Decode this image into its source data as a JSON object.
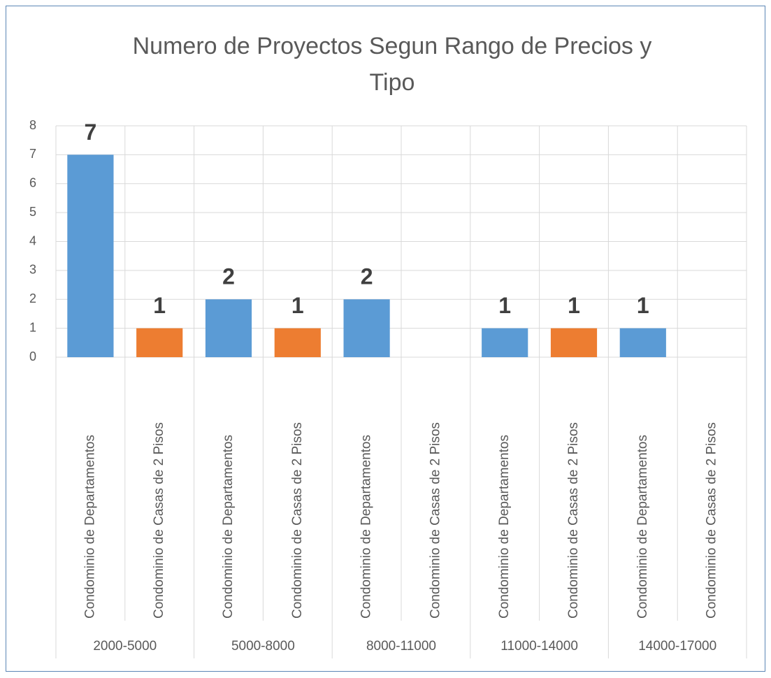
{
  "chart_data": {
    "type": "bar",
    "title": "Numero de Proyectos Segun Rango de Precios y Tipo",
    "groups": [
      "2000-5000",
      "5000-8000",
      "8000-11000",
      "11000-14000",
      "14000-17000"
    ],
    "categories": [
      "Condominio de Departamentos",
      "Condominio de Casas de 2 Pisos",
      "Condominio de Departamentos",
      "Condominio de Casas de 2 Pisos",
      "Condominio de Departamentos",
      "Condominio de Casas de 2 Pisos",
      "Condominio de Departamentos",
      "Condominio de Casas de 2 Pisos",
      "Condominio de Departamentos",
      "Condominio de Casas de 2 Pisos"
    ],
    "values": [
      7,
      1,
      2,
      1,
      2,
      null,
      1,
      1,
      1,
      null
    ],
    "colors": [
      "#5b9bd5",
      "#ed7d31",
      "#5b9bd5",
      "#ed7d31",
      "#5b9bd5",
      "#ed7d31",
      "#5b9bd5",
      "#ed7d31",
      "#5b9bd5",
      "#ed7d31"
    ],
    "ylim": [
      0,
      8
    ],
    "yticks": [
      0,
      1,
      2,
      3,
      4,
      5,
      6,
      7,
      8
    ],
    "grid": true
  }
}
